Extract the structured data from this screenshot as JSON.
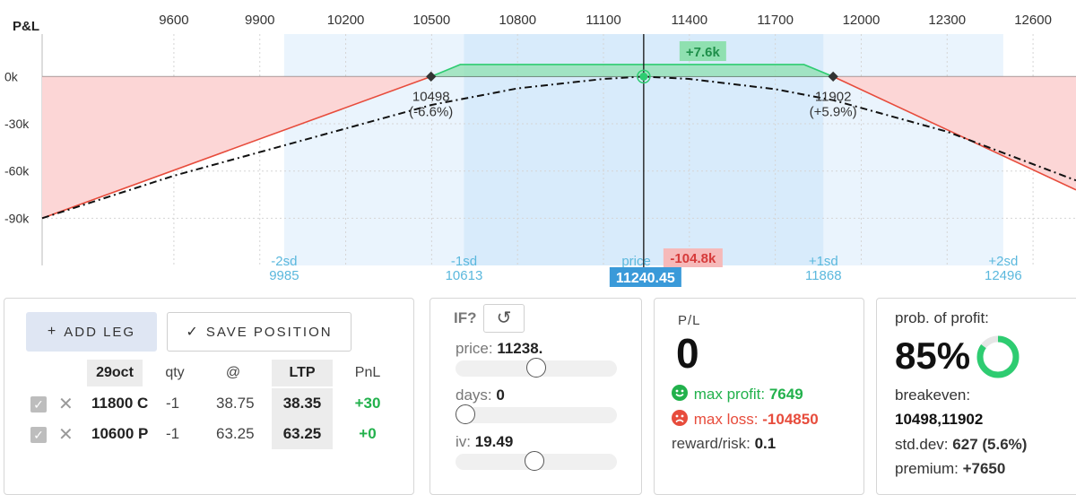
{
  "chart": {
    "title": "P&L",
    "x_ticks": [
      9600,
      9900,
      10200,
      10500,
      10800,
      11100,
      11400,
      11700,
      12000,
      12300,
      12600
    ],
    "x_range": [
      9140,
      12750
    ],
    "y_ticks": [
      {
        "value": 0,
        "label": "0k"
      },
      {
        "value": -30,
        "label": "-30k"
      },
      {
        "value": -60,
        "label": "-60k"
      },
      {
        "value": -90,
        "label": "-90k"
      }
    ],
    "y_range": [
      -120,
      27
    ],
    "spot": 11240.45,
    "spot_label": "11240.45",
    "breakevens": [
      {
        "value": 10498,
        "label": "10498",
        "pct": "(-6.6%)"
      },
      {
        "value": 11902,
        "label": "11902",
        "pct": "(+5.9%)"
      }
    ],
    "max_profit_label": "+7.6k",
    "max_loss_label": "-104.8k",
    "price_label": "price",
    "sd_bands": [
      {
        "name": "-2sd",
        "value": 9985,
        "label": "9985"
      },
      {
        "name": "-1sd",
        "value": 10613,
        "label": "10613"
      },
      {
        "name": "+1sd",
        "value": 11868,
        "label": "11868"
      },
      {
        "name": "+2sd",
        "value": 12496,
        "label": "12496"
      }
    ],
    "colors": {
      "profit": "#2ecc71",
      "loss": "#e74c3c",
      "sd1": "#d8ebfb",
      "sd2": "#eaf4fd",
      "label_blue": "#5bb8dd",
      "spot_bg": "#3a9ad9"
    }
  },
  "chart_data": {
    "type": "line",
    "xlabel": "",
    "ylabel": "P&L",
    "series": [
      {
        "x": [
          9140,
          10498,
          10600,
          11800,
          11902,
          12750
        ],
        "y": [
          -90,
          0,
          7.65,
          7.65,
          0,
          -72
        ]
      },
      {
        "x": [
          9140,
          9600,
          10200,
          10500,
          10800,
          11100,
          11240,
          11400,
          11700,
          11902,
          12300,
          12750
        ],
        "y": [
          -90,
          -63,
          -33,
          -18,
          -7.5,
          -1.5,
          0,
          -1.5,
          -8,
          -15,
          -35,
          -66
        ]
      }
    ]
  },
  "legs": {
    "add_leg_label": "ADD LEG",
    "save_label": "SAVE POSITION",
    "headers": {
      "expiry": "29oct",
      "qty": "qty",
      "at": "@",
      "ltp": "LTP",
      "pnl": "PnL"
    },
    "rows": [
      {
        "strike": "11800 C",
        "qty": "-1",
        "price": "38.75",
        "ltp": "38.35",
        "pnl": "+30"
      },
      {
        "strike": "10600 P",
        "qty": "-1",
        "price": "63.25",
        "ltp": "63.25",
        "pnl": "+0"
      }
    ]
  },
  "whatif": {
    "title": "IF?",
    "price_label": "price:",
    "price_value": "11238.",
    "days_label": "days:",
    "days_value": "0",
    "iv_label": "iv:",
    "iv_value": "19.49",
    "price_slider": 0.5,
    "days_slider": 0.0,
    "iv_slider": 0.49
  },
  "pl": {
    "title": "P/L",
    "value": "0",
    "max_profit_label": "max profit:",
    "max_profit": "7649",
    "max_loss_label": "max loss:",
    "max_loss": "-104850",
    "rr_label": "reward/risk:",
    "rr": "0.1"
  },
  "prob": {
    "title": "prob. of profit:",
    "value": "85%",
    "fraction": 0.85,
    "breakeven_label": "breakeven:",
    "breakeven": "10498,11902",
    "stddev_label": "std.dev:",
    "stddev": "627 (5.6%)",
    "premium_label": "premium:",
    "premium": "+7650"
  }
}
